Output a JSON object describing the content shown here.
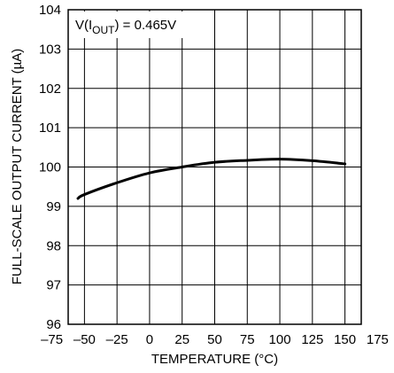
{
  "chart_data": {
    "type": "line",
    "xlabel": "TEMPERATURE (°C)",
    "ylabel": "FULL-SCALE OUTPUT CURRENT (µA)",
    "annotation": {
      "prefix": "V(I",
      "subscript": "OUT",
      "suffix": ") = 0.465V"
    },
    "xlim": [
      -75,
      175
    ],
    "ylim": [
      96,
      104
    ],
    "x_ticks": [
      -75,
      -50,
      -25,
      0,
      25,
      50,
      75,
      100,
      125,
      150,
      175
    ],
    "x_tick_labels": [
      "–75",
      "–50",
      "–25",
      "0",
      "25",
      "50",
      "75",
      "100",
      "125",
      "150",
      "175"
    ],
    "y_ticks": [
      96,
      97,
      98,
      99,
      100,
      101,
      102,
      103,
      104
    ],
    "y_tick_labels": [
      "96",
      "97",
      "98",
      "99",
      "100",
      "101",
      "102",
      "103",
      "104"
    ],
    "grid": true,
    "series": [
      {
        "color": "#000000",
        "x": [
          -55,
          -50,
          -25,
          0,
          25,
          50,
          75,
          100,
          125,
          150
        ],
        "y": [
          99.2,
          99.3,
          99.6,
          99.85,
          100.0,
          100.12,
          100.17,
          100.2,
          100.16,
          100.08
        ]
      }
    ]
  }
}
